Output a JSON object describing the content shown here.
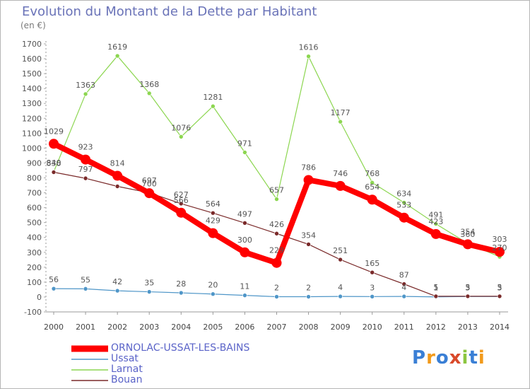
{
  "title": "Evolution du Montant de la Dette par Habitant",
  "unit_label": "(en €)",
  "logo_text": "Proxiti",
  "chart_data": {
    "type": "line",
    "x": [
      "2000",
      "2001",
      "2002",
      "2003",
      "2004",
      "2005",
      "2006",
      "2007",
      "2008",
      "2009",
      "2010",
      "2011",
      "2012",
      "2013",
      "2014"
    ],
    "ylim": [
      -100,
      1700
    ],
    "yticks": [
      -100,
      0,
      100,
      200,
      300,
      400,
      500,
      600,
      700,
      800,
      900,
      1000,
      1100,
      1200,
      1300,
      1400,
      1500,
      1600,
      1700
    ],
    "grid": "none",
    "legend_position": "bottom-left",
    "series": [
      {
        "name": "ORNOLAC-USSAT-LES-BAINS",
        "color": "#ff0000",
        "values": [
          1029,
          923,
          814,
          697,
          566,
          429,
          300,
          229,
          786,
          746,
          654,
          533,
          423,
          354,
          303
        ],
        "labels": [
          "1029",
          "923",
          "814",
          "697",
          "566",
          "429",
          "300",
          "229",
          "786",
          "746",
          "654",
          "533",
          "423",
          "354",
          "303"
        ]
      },
      {
        "name": "Ussat",
        "color": "#4f96c8",
        "values": [
          56,
          55,
          42,
          35,
          28,
          20,
          11,
          2,
          2,
          4,
          3,
          4,
          1,
          3,
          3
        ],
        "labels": [
          "56",
          "55",
          "42",
          "35",
          "28",
          "20",
          "11",
          "2",
          "2",
          "4",
          "3",
          "4",
          "1",
          "3",
          "3"
        ]
      },
      {
        "name": "Larnat",
        "color": "#8cd650",
        "values": [
          840,
          1363,
          1619,
          1368,
          1076,
          1281,
          971,
          657,
          1616,
          1177,
          768,
          634,
          491,
          360,
          270
        ],
        "labels": [
          "840",
          "1363",
          "1619",
          "1368",
          "1076",
          "1281",
          "971",
          "657",
          "1616",
          "1177",
          "768",
          "634",
          "491",
          "360",
          "270"
        ]
      },
      {
        "name": "Bouan",
        "color": "#7a2a2a",
        "values": [
          838,
          797,
          743,
          700,
          627,
          564,
          497,
          426,
          354,
          251,
          165,
          87,
          5,
          5,
          5
        ],
        "labels": [
          "838",
          "797",
          "",
          "700",
          "627",
          "564",
          "497",
          "426",
          "354",
          "251",
          "165",
          "87",
          "5",
          "5",
          "5"
        ]
      }
    ]
  }
}
